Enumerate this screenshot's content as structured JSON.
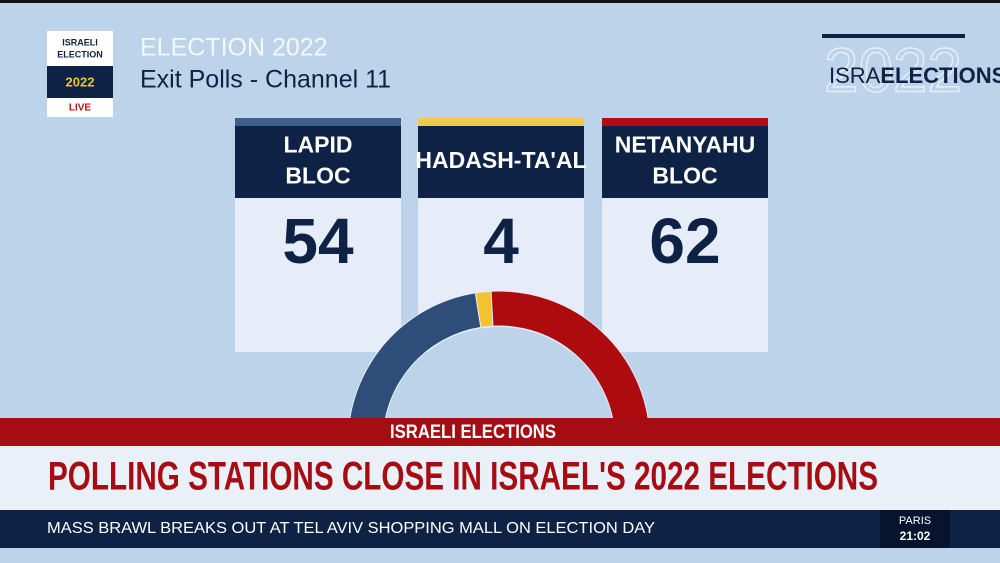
{
  "badge": {
    "line1": "ISRAELI",
    "line2": "ELECTION",
    "year": "2022",
    "live": "LIVE"
  },
  "header": {
    "title": "ELECTION 2022",
    "subtitle": "Exit Polls - Channel 11"
  },
  "logo": {
    "light": "ISRA",
    "bold": "ELECTIONS",
    "watermark": "2022"
  },
  "cards": [
    {
      "name": [
        "LAPID",
        "BLOC"
      ],
      "value": 54,
      "color": "#2e4d78",
      "strip": "#3e5f8a"
    },
    {
      "name": [
        "HADASH-TA'AL"
      ],
      "value": 4,
      "color": "#f2c230",
      "strip": "#f2c94c"
    },
    {
      "name": [
        "NETANYAHU",
        "BLOC"
      ],
      "value": 62,
      "color": "#ae0b0e",
      "strip": "#b00c12"
    }
  ],
  "banner": {
    "label": "ISRAELI ELECTIONS",
    "headline": "POLLING STATIONS CLOSE IN ISRAEL'S 2022 ELECTIONS"
  },
  "ticker": {
    "text": "MASS BRAWL BREAKS OUT AT TEL AVIV SHOPPING MALL ON ELECTION DAY",
    "city": "PARIS",
    "time": "21:02"
  }
}
